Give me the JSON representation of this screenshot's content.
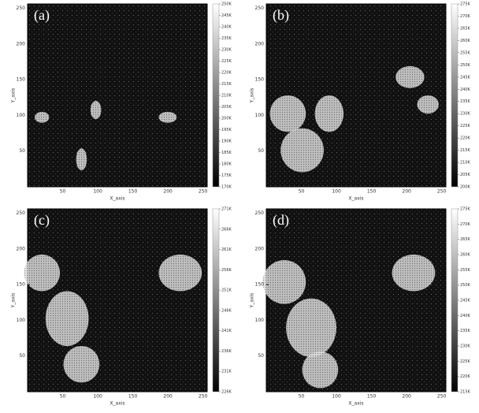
{
  "chart_data": [
    {
      "type": "heatmap",
      "label": "(a)",
      "x_label": "X_axis",
      "y_label": "Y_axis",
      "xlim": [
        0,
        256
      ],
      "ylim": [
        0,
        256
      ],
      "xticks": [
        50,
        100,
        150,
        200,
        250
      ],
      "yticks": [
        50,
        100,
        150,
        200,
        250
      ],
      "zlim": [
        170,
        250
      ],
      "zticks": [
        {
          "value": 170,
          "label": "170K"
        },
        {
          "value": 175,
          "label": "175K"
        },
        {
          "value": 180,
          "label": "180K"
        },
        {
          "value": 185,
          "label": "185K"
        },
        {
          "value": 190,
          "label": "190K"
        },
        {
          "value": 195,
          "label": "195K"
        },
        {
          "value": 200,
          "label": "200K"
        },
        {
          "value": 205,
          "label": "205K"
        },
        {
          "value": 210,
          "label": "210K"
        },
        {
          "value": 215,
          "label": "215K"
        },
        {
          "value": 220,
          "label": "220K"
        },
        {
          "value": 225,
          "label": "225K"
        },
        {
          "value": 230,
          "label": "230K"
        },
        {
          "value": 235,
          "label": "235K"
        },
        {
          "value": 240,
          "label": "240K"
        },
        {
          "value": 245,
          "label": "245K"
        },
        {
          "value": 250,
          "label": "250K"
        }
      ]
    },
    {
      "type": "heatmap",
      "label": "(b)",
      "x_label": "X_axis",
      "y_label": "Y_axis",
      "xlim": [
        0,
        256
      ],
      "ylim": [
        0,
        256
      ],
      "xticks": [
        50,
        100,
        150,
        200,
        250
      ],
      "yticks": [
        50,
        100,
        150,
        200,
        250
      ],
      "zlim": [
        200,
        275
      ],
      "zticks": [
        {
          "value": 200,
          "label": "200K"
        },
        {
          "value": 205,
          "label": "205K"
        },
        {
          "value": 210,
          "label": "210K"
        },
        {
          "value": 215,
          "label": "215K"
        },
        {
          "value": 220,
          "label": "220K"
        },
        {
          "value": 225,
          "label": "225K"
        },
        {
          "value": 230,
          "label": "230K"
        },
        {
          "value": 235,
          "label": "235K"
        },
        {
          "value": 240,
          "label": "240K"
        },
        {
          "value": 245,
          "label": "245K"
        },
        {
          "value": 250,
          "label": "250K"
        },
        {
          "value": 255,
          "label": "255K"
        },
        {
          "value": 260,
          "label": "260K"
        },
        {
          "value": 265,
          "label": "265K"
        },
        {
          "value": 270,
          "label": "270K"
        },
        {
          "value": 275,
          "label": "275K"
        }
      ]
    },
    {
      "type": "heatmap",
      "label": "(c)",
      "x_label": "X_axis",
      "y_label": "Y_axis",
      "xlim": [
        0,
        256
      ],
      "ylim": [
        0,
        256
      ],
      "xticks": [
        50,
        100,
        150,
        200,
        250
      ],
      "yticks": [
        50,
        100,
        150,
        200,
        250
      ],
      "zlim": [
        226,
        271
      ],
      "zticks": [
        {
          "value": 226,
          "label": "226K"
        },
        {
          "value": 231,
          "label": "231K"
        },
        {
          "value": 236,
          "label": "236K"
        },
        {
          "value": 241,
          "label": "241K"
        },
        {
          "value": 246,
          "label": "246K"
        },
        {
          "value": 251,
          "label": "251K"
        },
        {
          "value": 256,
          "label": "256K"
        },
        {
          "value": 261,
          "label": "261K"
        },
        {
          "value": 266,
          "label": "266K"
        },
        {
          "value": 271,
          "label": "271K"
        }
      ]
    },
    {
      "type": "heatmap",
      "label": "(d)",
      "x_label": "X_axis",
      "y_label": "Y_axis",
      "xlim": [
        0,
        256
      ],
      "ylim": [
        0,
        256
      ],
      "xticks": [
        50,
        100,
        150,
        200,
        250
      ],
      "yticks": [
        50,
        100,
        150,
        200,
        250
      ],
      "zlim": [
        215,
        275
      ],
      "zticks": [
        {
          "value": 215,
          "label": "215K"
        },
        {
          "value": 220,
          "label": "220K"
        },
        {
          "value": 225,
          "label": "225K"
        },
        {
          "value": 230,
          "label": "230K"
        },
        {
          "value": 235,
          "label": "235K"
        },
        {
          "value": 240,
          "label": "240K"
        },
        {
          "value": 245,
          "label": "245K"
        },
        {
          "value": 250,
          "label": "250K"
        },
        {
          "value": 255,
          "label": "255K"
        },
        {
          "value": 260,
          "label": "260K"
        },
        {
          "value": 265,
          "label": "265K"
        },
        {
          "value": 270,
          "label": "270K"
        },
        {
          "value": 275,
          "label": "275K"
        }
      ]
    }
  ]
}
